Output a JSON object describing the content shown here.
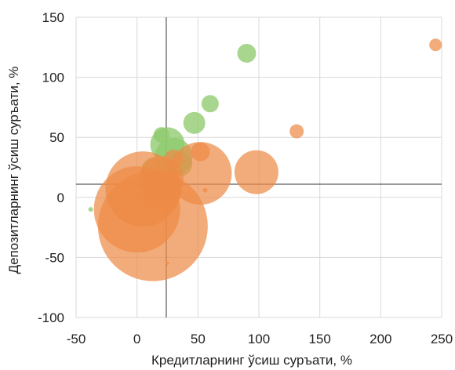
{
  "chart_data": {
    "type": "scatter",
    "xlabel": "Кредитларнинг ўсиш суръати, %",
    "ylabel": "Депозитларнинг ўсиш суръати, %",
    "xlim": [
      -50,
      250
    ],
    "ylim": [
      -100,
      150
    ],
    "xticks": [
      "-50",
      "0",
      "50",
      "100",
      "150",
      "200",
      "250"
    ],
    "yticks": [
      "150",
      "100",
      "50",
      "0",
      "-50",
      "-100"
    ],
    "xtick_values": [
      -50,
      0,
      50,
      100,
      150,
      200,
      250
    ],
    "ytick_values": [
      150,
      100,
      50,
      0,
      -50,
      -100
    ],
    "grid": true,
    "reference_lines": {
      "x": 24,
      "y": 11
    },
    "colors": {
      "green": "#8fca6e",
      "orange": "#ed8a47",
      "grid": "#d9d9d9",
      "ref": "#333333"
    },
    "series": [
      {
        "color": "#8fca6e",
        "points": [
          {
            "x": -38,
            "y": -10,
            "r": 3
          },
          {
            "x": 90,
            "y": 120,
            "r": 12
          },
          {
            "x": 60,
            "y": 78,
            "r": 11
          },
          {
            "x": 47,
            "y": 62,
            "r": 14
          },
          {
            "x": 20,
            "y": 52,
            "r": 10
          },
          {
            "x": 25,
            "y": 44,
            "r": 22
          },
          {
            "x": 30,
            "y": 34,
            "r": 24
          },
          {
            "x": 35,
            "y": 28,
            "r": 16
          },
          {
            "x": 15,
            "y": 22,
            "r": 18
          },
          {
            "x": 10,
            "y": 14,
            "r": 16
          },
          {
            "x": 0,
            "y": 0,
            "r": 2
          }
        ]
      },
      {
        "color": "#ed8a47",
        "points": [
          {
            "x": 245,
            "y": 127,
            "r": 8
          },
          {
            "x": 131,
            "y": 55,
            "r": 9
          },
          {
            "x": 52,
            "y": 38,
            "r": 12
          },
          {
            "x": 98,
            "y": 21,
            "r": 28
          },
          {
            "x": 52,
            "y": 20,
            "r": 40
          },
          {
            "x": 30,
            "y": 32,
            "r": 12
          },
          {
            "x": 20,
            "y": 16,
            "r": 28
          },
          {
            "x": 5,
            "y": 7,
            "r": 48
          },
          {
            "x": 20,
            "y": 6,
            "r": 26
          },
          {
            "x": 0,
            "y": -10,
            "r": 55
          },
          {
            "x": 13,
            "y": -24,
            "r": 70
          },
          {
            "x": 56,
            "y": 6,
            "r": 3
          },
          {
            "x": 25,
            "y": -55,
            "r": 2
          }
        ]
      }
    ]
  }
}
